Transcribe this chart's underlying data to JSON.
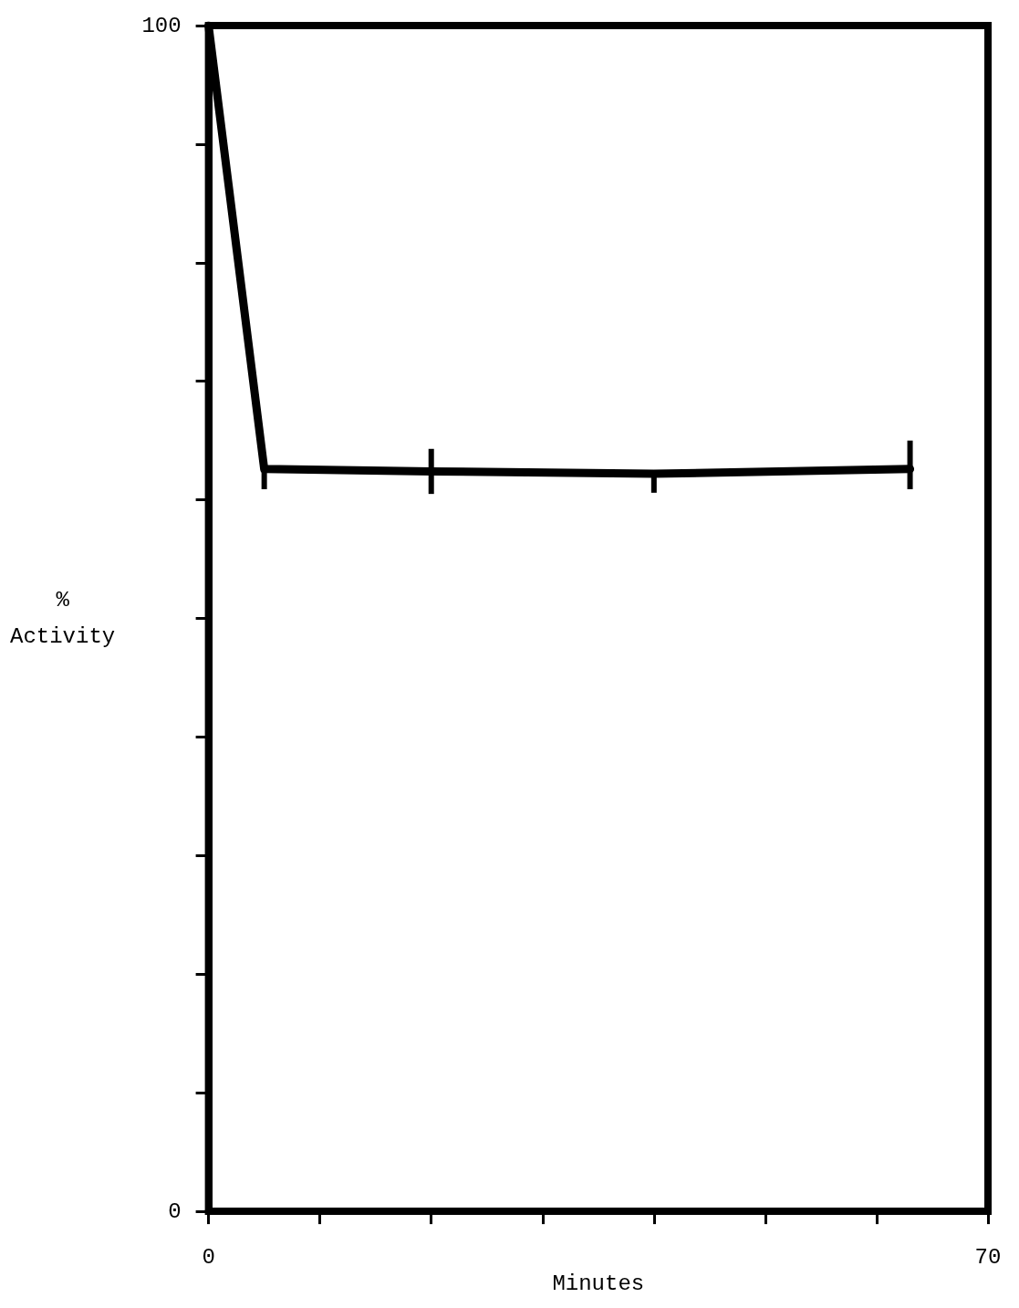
{
  "chart_data": {
    "type": "line",
    "xlabel": "Minutes",
    "ylabel": "%\nActivity",
    "x": [
      0,
      5,
      20,
      40,
      63
    ],
    "series": [
      {
        "color": "#000000",
        "values": [
          100,
          62.6,
          62.4,
          62.2,
          62.6
        ],
        "errors": [
          null,
          [
            60.9,
            62.6
          ],
          [
            60.5,
            64.3
          ],
          [
            60.6,
            62.2
          ],
          [
            60.9,
            65
          ]
        ]
      }
    ],
    "xlim": [
      0,
      70
    ],
    "ylim": [
      0,
      100
    ],
    "xticks": [
      0,
      {
        "value": 10,
        "label": null
      },
      {
        "value": 20,
        "label": null
      },
      {
        "value": 30,
        "label": null
      },
      {
        "value": 40,
        "label": null
      },
      {
        "value": 50,
        "label": null
      },
      {
        "value": 60,
        "label": null
      },
      70
    ],
    "yticks": [
      0,
      {
        "value": 10,
        "label": null
      },
      {
        "value": 20,
        "label": null
      },
      {
        "value": 30,
        "label": null
      },
      {
        "value": 40,
        "label": null
      },
      {
        "value": 50,
        "label": null
      },
      {
        "value": 60,
        "label": null
      },
      {
        "value": 70,
        "label": null
      },
      {
        "value": 80,
        "label": null
      },
      {
        "value": 90,
        "label": null
      },
      100
    ],
    "grid": false,
    "line_style": "solid"
  }
}
